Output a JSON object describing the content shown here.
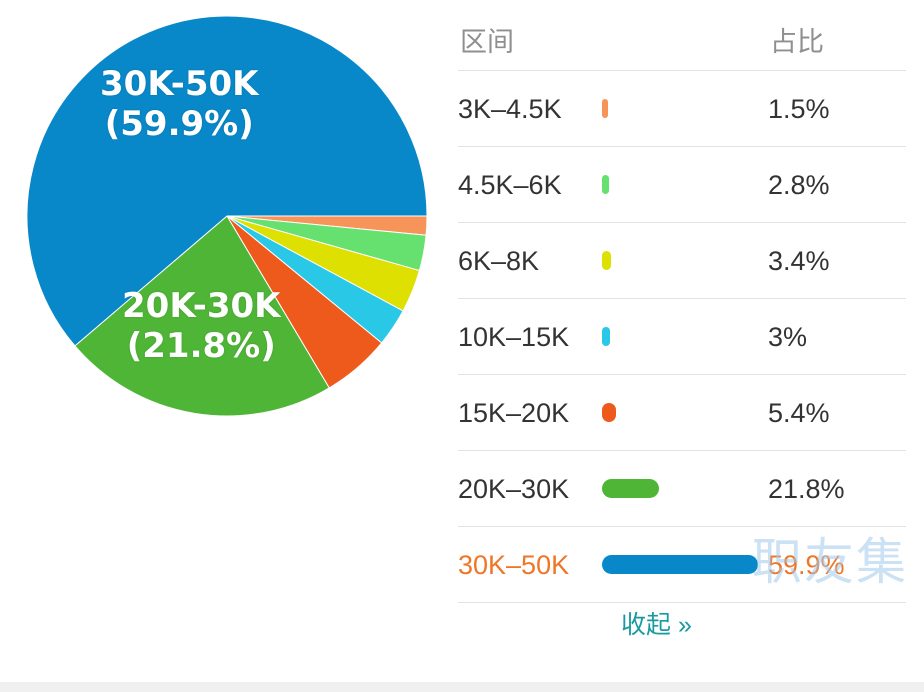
{
  "chart_data": {
    "type": "pie",
    "title": "",
    "slices": [
      {
        "label": "3K-4.5K",
        "value": 1.5,
        "pct_text": "1.5%",
        "color": "#f7945a"
      },
      {
        "label": "4.5K-6K",
        "value": 2.8,
        "pct_text": "2.8%",
        "color": "#66e06e"
      },
      {
        "label": "6K-8K",
        "value": 3.4,
        "pct_text": "3.4%",
        "color": "#dde000"
      },
      {
        "label": "10K-15K",
        "value": 3.0,
        "pct_text": "3%",
        "color": "#29c8e6"
      },
      {
        "label": "15K-20K",
        "value": 5.4,
        "pct_text": "5.4%",
        "color": "#ee5a1c"
      },
      {
        "label": "20K-30K",
        "value": 21.8,
        "pct_text": "21.8%",
        "color": "#4fb536"
      },
      {
        "label": "30K-50K",
        "value": 59.9,
        "pct_text": "59.9%",
        "color": "#0888c8"
      }
    ],
    "slice_labels": [
      {
        "line1": "30K-50K",
        "line2": "(59.9%)"
      },
      {
        "line1": "20K-30K",
        "line2": "(21.8%)"
      }
    ]
  },
  "legend": {
    "header_range": "区间",
    "header_pct": "占比",
    "rows": [
      {
        "range": "3K–4.5K",
        "pct": "1.5%"
      },
      {
        "range": "4.5K–6K",
        "pct": "2.8%"
      },
      {
        "range": "6K–8K",
        "pct": "3.4%"
      },
      {
        "range": "10K–15K",
        "pct": "3%"
      },
      {
        "range": "15K–20K",
        "pct": "5.4%"
      },
      {
        "range": "20K–30K",
        "pct": "21.8%"
      },
      {
        "range": "30K–50K",
        "pct": "59.9%",
        "highlighted": true
      }
    ],
    "highlight_color": "#f07626"
  },
  "collapse_label": "收起 »",
  "watermark": "职友集"
}
